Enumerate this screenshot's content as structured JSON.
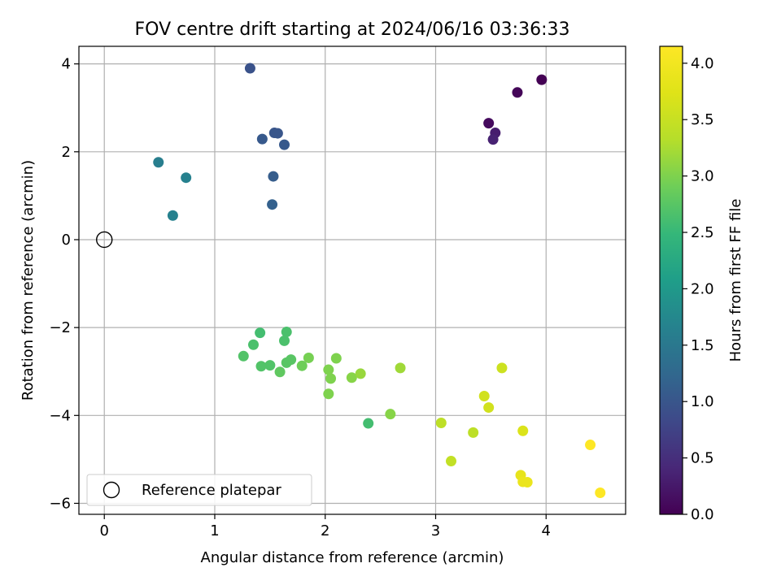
{
  "chart_data": {
    "type": "scatter",
    "title": "FOV centre drift starting at 2024/06/16 03:36:33",
    "xlabel": "Angular distance from reference (arcmin)",
    "ylabel": "Rotation from reference (arcmin)",
    "xlim": [
      -0.23,
      4.72
    ],
    "ylim": [
      -6.25,
      4.4
    ],
    "x_ticks": [
      0,
      1,
      2,
      3,
      4
    ],
    "y_ticks": [
      -6,
      -4,
      -2,
      0,
      2,
      4
    ],
    "x_tick_labels": [
      "0",
      "1",
      "2",
      "3",
      "4"
    ],
    "y_tick_labels": [
      "−6",
      "−4",
      "−2",
      "0",
      "2",
      "4"
    ],
    "grid": true,
    "legend": {
      "placement": "lower-left",
      "entries": [
        "Reference platepar"
      ]
    },
    "reference_point": {
      "x": 0,
      "y": 0
    },
    "colorbar": {
      "label": "Hours from first FF file",
      "range": [
        0.0,
        4.15
      ],
      "ticks": [
        0.0,
        0.5,
        1.0,
        1.5,
        2.0,
        2.5,
        3.0,
        3.5,
        4.0
      ],
      "tick_labels": [
        "0.0",
        "0.5",
        "1.0",
        "1.5",
        "2.0",
        "2.5",
        "3.0",
        "3.5",
        "4.0"
      ],
      "colormap": "viridis"
    },
    "points": [
      {
        "x": 3.96,
        "y": 3.64,
        "c": 0.0
      },
      {
        "x": 3.74,
        "y": 3.35,
        "c": 0.05
      },
      {
        "x": 3.48,
        "y": 2.65,
        "c": 0.1
      },
      {
        "x": 3.54,
        "y": 2.43,
        "c": 0.3
      },
      {
        "x": 3.52,
        "y": 2.28,
        "c": 0.35
      },
      {
        "x": 1.32,
        "y": 3.9,
        "c": 0.95
      },
      {
        "x": 1.54,
        "y": 2.43,
        "c": 1.0
      },
      {
        "x": 1.57,
        "y": 2.42,
        "c": 1.0
      },
      {
        "x": 1.43,
        "y": 2.29,
        "c": 1.05
      },
      {
        "x": 1.63,
        "y": 2.16,
        "c": 1.05
      },
      {
        "x": 1.53,
        "y": 1.44,
        "c": 1.1
      },
      {
        "x": 1.52,
        "y": 0.8,
        "c": 1.15
      },
      {
        "x": 0.49,
        "y": 1.76,
        "c": 1.6
      },
      {
        "x": 0.74,
        "y": 1.41,
        "c": 1.65
      },
      {
        "x": 0.62,
        "y": 0.55,
        "c": 1.65
      },
      {
        "x": 1.41,
        "y": -2.12,
        "c": 2.6
      },
      {
        "x": 1.65,
        "y": -2.1,
        "c": 2.65
      },
      {
        "x": 1.63,
        "y": -2.3,
        "c": 2.65
      },
      {
        "x": 1.35,
        "y": -2.39,
        "c": 2.65
      },
      {
        "x": 1.26,
        "y": -2.65,
        "c": 2.7
      },
      {
        "x": 1.42,
        "y": -2.88,
        "c": 2.7
      },
      {
        "x": 1.5,
        "y": -2.86,
        "c": 2.7
      },
      {
        "x": 1.65,
        "y": -2.8,
        "c": 2.75
      },
      {
        "x": 1.69,
        "y": -2.73,
        "c": 2.75
      },
      {
        "x": 1.59,
        "y": -3.01,
        "c": 2.8
      },
      {
        "x": 1.79,
        "y": -2.87,
        "c": 2.9
      },
      {
        "x": 1.85,
        "y": -2.69,
        "c": 2.95
      },
      {
        "x": 2.1,
        "y": -2.7,
        "c": 3.0
      },
      {
        "x": 2.03,
        "y": -2.96,
        "c": 3.0
      },
      {
        "x": 2.05,
        "y": -3.16,
        "c": 3.0
      },
      {
        "x": 2.24,
        "y": -3.14,
        "c": 3.05
      },
      {
        "x": 2.32,
        "y": -3.05,
        "c": 3.15
      },
      {
        "x": 2.68,
        "y": -2.92,
        "c": 3.2
      },
      {
        "x": 2.03,
        "y": -3.51,
        "c": 3.0
      },
      {
        "x": 2.59,
        "y": -3.97,
        "c": 3.05
      },
      {
        "x": 2.39,
        "y": -4.18,
        "c": 2.6
      },
      {
        "x": 3.05,
        "y": -4.17,
        "c": 3.4
      },
      {
        "x": 3.34,
        "y": -4.39,
        "c": 3.4
      },
      {
        "x": 3.14,
        "y": -5.04,
        "c": 3.45
      },
      {
        "x": 3.6,
        "y": -2.92,
        "c": 3.55
      },
      {
        "x": 3.44,
        "y": -3.56,
        "c": 3.6
      },
      {
        "x": 3.48,
        "y": -3.82,
        "c": 3.6
      },
      {
        "x": 3.79,
        "y": -4.35,
        "c": 3.7
      },
      {
        "x": 3.77,
        "y": -5.36,
        "c": 3.85
      },
      {
        "x": 3.79,
        "y": -5.51,
        "c": 3.9
      },
      {
        "x": 3.83,
        "y": -5.52,
        "c": 3.9
      },
      {
        "x": 4.4,
        "y": -4.67,
        "c": 4.15
      },
      {
        "x": 4.49,
        "y": -5.76,
        "c": 4.15
      }
    ]
  }
}
